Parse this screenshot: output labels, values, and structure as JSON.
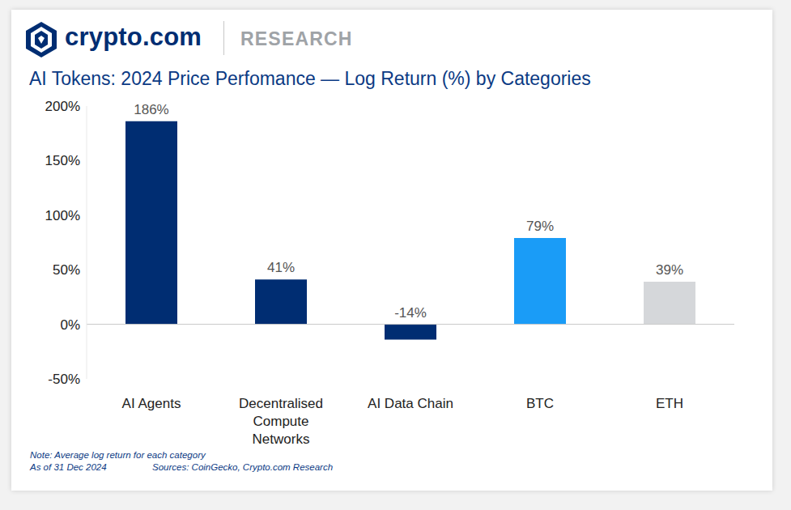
{
  "header": {
    "brand": "crypto.com",
    "section": "RESEARCH"
  },
  "chart_data": {
    "type": "bar",
    "title": "AI Tokens: 2024 Price Perfomance — Log Return (%) by Categories",
    "categories": [
      "AI Agents",
      "Decentralised Compute Networks",
      "AI Data Chain",
      "BTC",
      "ETH"
    ],
    "values": [
      186,
      41,
      -14,
      79,
      39
    ],
    "value_labels": [
      "186%",
      "41%",
      "-14%",
      "79%",
      "39%"
    ],
    "colors": [
      "#002d72",
      "#002d72",
      "#002d72",
      "#1a9cf7",
      "#d5d7da"
    ],
    "ylim": [
      -50,
      200
    ],
    "yticks": [
      {
        "value": -50,
        "label": "-50%"
      },
      {
        "value": 0,
        "label": "0%"
      },
      {
        "value": 50,
        "label": "50%"
      },
      {
        "value": 100,
        "label": "100%"
      },
      {
        "value": 150,
        "label": "150%"
      },
      {
        "value": 200,
        "label": "200%"
      }
    ],
    "grid": false,
    "data_labels": true,
    "annotations": [
      "Note: Average log return for each category",
      "As of 31 Dec 2024",
      "Sources: CoinGecko, Crypto.com Research"
    ]
  }
}
